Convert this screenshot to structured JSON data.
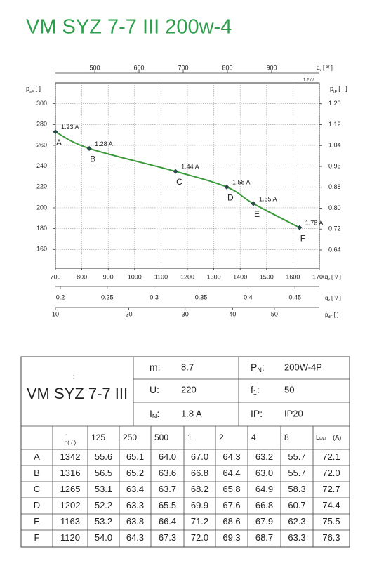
{
  "title": "VM SYZ 7-7 III 200w-4",
  "chart_data": {
    "type": "line",
    "x_axis_label": {
      "symbol": "q",
      "subscript": "v",
      "unit": "[    ³/   ]"
    },
    "y_axis_label": {
      "symbol": "p",
      "subscript": "sF",
      "unit": "[      ]"
    },
    "y2_axis_label": {
      "symbol": "p",
      "subscript": "tF",
      "unit": "[      .   ]"
    },
    "xlim": [
      700,
      1700
    ],
    "xticks": [
      700,
      800,
      900,
      1000,
      1100,
      1200,
      1300,
      1400,
      1500,
      1600,
      1700
    ],
    "ylim": [
      142,
      320
    ],
    "yticks": [
      160,
      180,
      200,
      220,
      240,
      260,
      280,
      300
    ],
    "y2lim": [
      0.57,
      1.28
    ],
    "y2ticks": [
      0.64,
      0.72,
      {
        "value": 0.8,
        "label": "0.80"
      },
      0.88,
      0.96,
      1.04,
      1.12,
      {
        "value": 1.2,
        "label": "1.20"
      }
    ],
    "secondary_x_axes": [
      {
        "position": "top",
        "label": {
          "symbol": "q",
          "subscript": "v",
          "unit": "[    ³/   ]"
        },
        "note": "1.2  /  /",
        "xlim": [
          411,
          1008
        ],
        "xticks": [
          500,
          600,
          700,
          800,
          900
        ]
      },
      {
        "position": "bottom",
        "label": {
          "symbol": "q",
          "subscript": "v",
          "unit": "[    ³/   ]"
        },
        "xlim": [
          0.1948,
          0.476
        ],
        "xticks": [
          0.2,
          0.25,
          0.3,
          0.35,
          0.4,
          0.45
        ]
      },
      {
        "position": "bottom",
        "label": {
          "symbol": "p",
          "subscript": "dF",
          "unit": "[      ]"
        },
        "scale": "sqrt",
        "xlim": [
          10,
          62
        ],
        "xticks": [
          10,
          20,
          30,
          40,
          50
        ]
      }
    ],
    "x": [
      700,
      828,
      1155,
      1349,
      1450,
      1625
    ],
    "values": [
      273,
      257,
      235,
      220,
      204,
      181
    ],
    "point_names": [
      "A",
      "B",
      "C",
      "D",
      "E",
      "F"
    ],
    "point_labels": [
      "1.23 A",
      "1.28 A",
      "1.44 A",
      "1.58 A",
      "1.65 A",
      "1.78 A"
    ],
    "color": "#3c9a3c",
    "marker_color": "#2b4848",
    "grid": true
  },
  "table": {
    "model_label": ":",
    "model": "VM SYZ 7-7 III",
    "specs_left": [
      {
        "label": "m:",
        "value": "8.7"
      },
      {
        "label": "U:",
        "value": "220"
      },
      {
        "label": "I",
        "sub": "N",
        "suffix": ":",
        "value": "1.8  A"
      }
    ],
    "specs_right": [
      {
        "label": "P",
        "sub": "N",
        "suffix": ":",
        "value": "200W-4P"
      },
      {
        "label": "f",
        "sub": "1",
        "suffix": ":",
        "value": "50"
      },
      {
        "label": "IP:",
        "value": "IP20"
      }
    ],
    "header": {
      "rpm_dot": ".",
      "rpm": "n(  /  )",
      "bands": [
        "125",
        "250",
        "500",
        "1",
        "2",
        "4",
        "8"
      ],
      "lwa": {
        "symbol": "L",
        "subscript": "WAI",
        "unit": "(A)"
      }
    },
    "rows": [
      [
        "A",
        "1342",
        "55.6",
        "65.1",
        "64.0",
        "67.0",
        "64.3",
        "63.2",
        "55.7",
        "72.1"
      ],
      [
        "B",
        "1316",
        "56.5",
        "65.2",
        "63.6",
        "66.8",
        "64.4",
        "63.0",
        "55.7",
        "72.0"
      ],
      [
        "C",
        "1265",
        "53.1",
        "63.4",
        "63.7",
        "68.2",
        "65.8",
        "64.9",
        "58.3",
        "72.7"
      ],
      [
        "D",
        "1202",
        "52.2",
        "63.3",
        "65.5",
        "69.9",
        "67.6",
        "66.8",
        "60.7",
        "74.4"
      ],
      [
        "E",
        "1163",
        "53.2",
        "63.8",
        "66.4",
        "71.2",
        "68.6",
        "67.9",
        "62.3",
        "75.5"
      ],
      [
        "F",
        "1120",
        "54.0",
        "64.3",
        "67.3",
        "72.0",
        "69.3",
        "68.7",
        "63.3",
        "76.3"
      ]
    ]
  }
}
